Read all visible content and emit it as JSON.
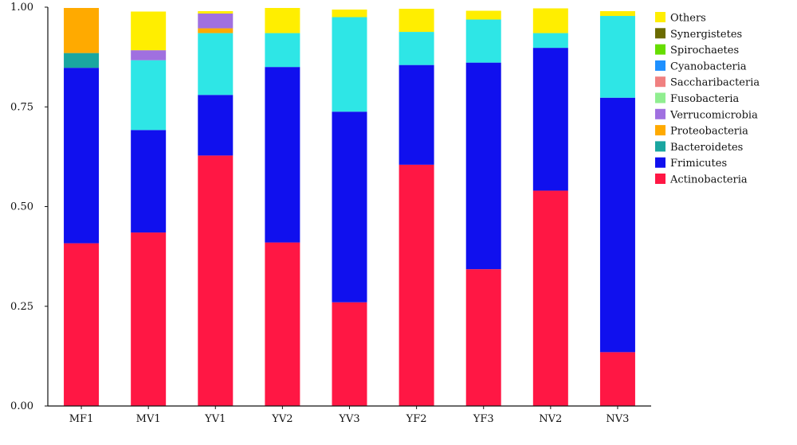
{
  "chart_data": {
    "type": "bar",
    "stacked": true,
    "title": "",
    "xlabel": "",
    "ylabel": "",
    "ylim": [
      0,
      1
    ],
    "yticks": [
      "0.00",
      "0.25",
      "0.50",
      "0.75",
      "1.00"
    ],
    "grid": false,
    "legend_position": "right",
    "categories": [
      "MF1",
      "MV1",
      "YV1",
      "YV2",
      "YV3",
      "YF2",
      "YF3",
      "NV2",
      "NV3"
    ],
    "series": [
      {
        "name": "Actinobacteria",
        "color": "#ff1744",
        "values": [
          0.408,
          0.435,
          0.628,
          0.41,
          0.26,
          0.605,
          0.343,
          0.54,
          0.135
        ]
      },
      {
        "name": "Frimicutes",
        "color": "#1010ee",
        "values": [
          0.44,
          0.257,
          0.152,
          0.44,
          0.478,
          0.25,
          0.518,
          0.358,
          0.638
        ]
      },
      {
        "name": "Bacteroidetes",
        "color": "#1aa6a0",
        "values": [
          0.037,
          0.0,
          0.0,
          0.0,
          0.0,
          0.0,
          0.0,
          0.0,
          0.0
        ]
      },
      {
        "name": "Proteobacteria",
        "color": "#ffaa00",
        "values": [
          0.113,
          0.0,
          0.012,
          0.0,
          0.0,
          0.0,
          0.0,
          0.0,
          0.0
        ]
      },
      {
        "name": "Verrucomicrobia",
        "color": "#a070e0",
        "values": [
          0.0,
          0.025,
          0.037,
          0.0,
          0.0,
          0.0,
          0.0,
          0.0,
          0.0
        ]
      },
      {
        "name": "Fusobacteria",
        "color": "#90ee90",
        "values": [
          0.0,
          0.0,
          0.0,
          0.0,
          0.0,
          0.0,
          0.0,
          0.0,
          0.0
        ]
      },
      {
        "name": "Saccharibacteria",
        "color": "#f08080",
        "values": [
          0.0,
          0.0,
          0.0,
          0.0,
          0.0,
          0.0,
          0.0,
          0.0,
          0.0
        ]
      },
      {
        "name": "Cyanobacteria",
        "color": "#1e90ff",
        "values": [
          0.0,
          0.0,
          0.0,
          0.0,
          0.0,
          0.0,
          0.0,
          0.0,
          0.0
        ]
      },
      {
        "name": "Spirochaetes",
        "color": "#66dd00",
        "values": [
          0.0,
          0.0,
          0.0,
          0.0,
          0.0,
          0.0,
          0.0,
          0.0,
          0.0
        ]
      },
      {
        "name": "Synergistetes",
        "color": "#6b6b00",
        "values": [
          0.0,
          0.0,
          0.0,
          0.0,
          0.0,
          0.0,
          0.0,
          0.0,
          0.0
        ]
      },
      {
        "name": "Others",
        "color": "#ffee00",
        "values": [
          0.0,
          0.097,
          0.006,
          0.063,
          0.019,
          0.058,
          0.022,
          0.062,
          0.012
        ]
      },
      {
        "name": "",
        "color": "#2ee6e6",
        "values": [
          0.0,
          0.175,
          0.155,
          0.085,
          0.237,
          0.083,
          0.108,
          0.037,
          0.205
        ]
      }
    ],
    "stack_order": [
      0,
      1,
      11,
      2,
      3,
      4,
      10
    ]
  }
}
